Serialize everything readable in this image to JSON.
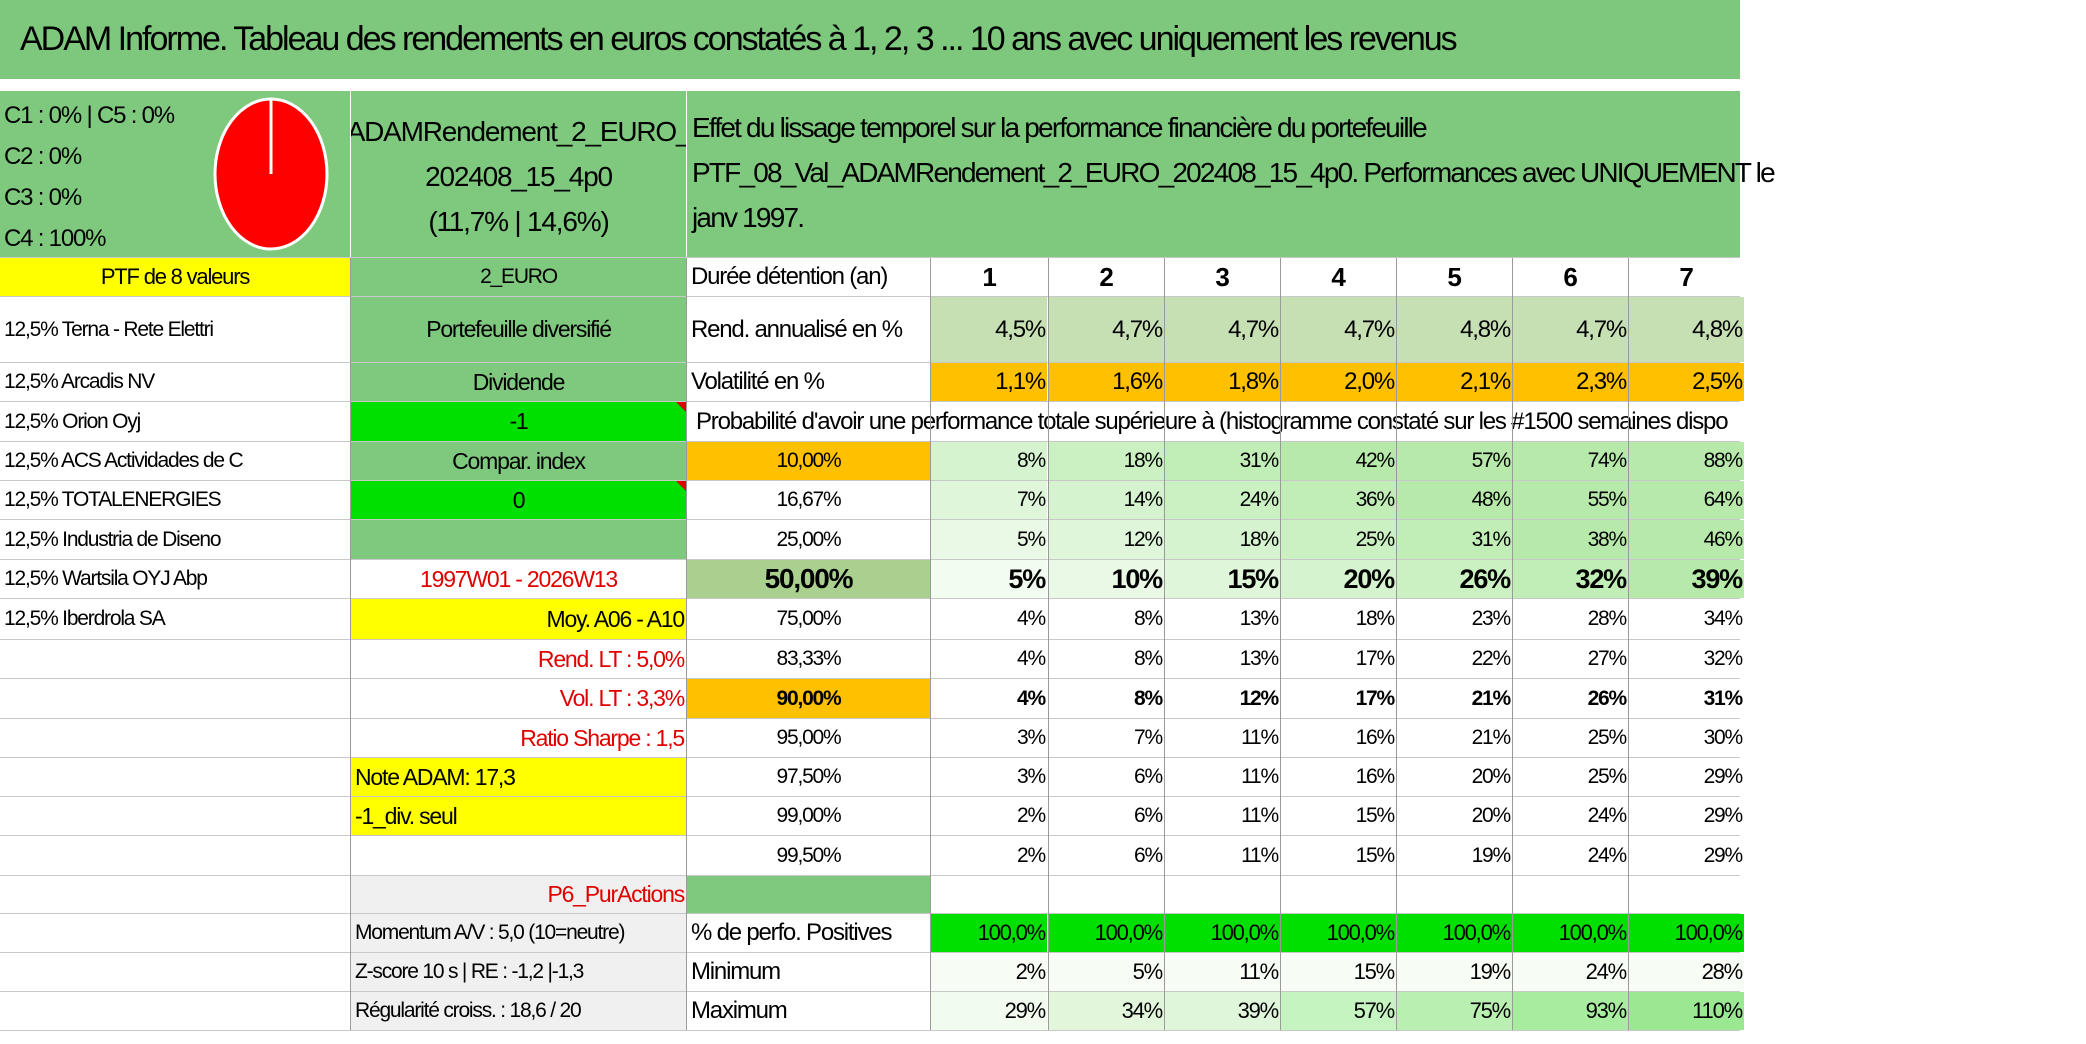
{
  "title": "ADAM Informe. Tableau des rendements en euros constatés à 1, 2, 3 ... 10 ans avec uniquement les revenus",
  "colors": {
    "green_header": "#7dc87d",
    "mid_green": "#7fc97f",
    "bright_green": "#00e000",
    "yellow": "#ffff00",
    "orange": "#ffc000",
    "pale_green": "#c6e0b4",
    "light_green": "#e2f6dc",
    "lightest_green": "#f1fcef",
    "red_text": "#e00000",
    "pie_red": "#ff0000"
  },
  "allocation": {
    "line1": "C1 : 0% | C5 : 0%",
    "line2": "C2 : 0%",
    "line3": "C3 : 0%",
    "line4": "C4 : 100%"
  },
  "fund": {
    "name_line1": "ADAMRendement_2_EURO_",
    "name_line2": "202408_15_4p0",
    "name_line3": "(11,7% | 14,6%)",
    "code": "2_EURO",
    "type": "Portefeuille diversifié",
    "income": "Dividende",
    "val1": "-1",
    "compar": "Compar. index",
    "val2": "0",
    "period": "1997W01 - 2026W13",
    "moy": "Moy. A06 - A10",
    "rend_lt": "Rend. LT : 5,0%",
    "vol_lt": "Vol. LT : 3,3%",
    "sharpe": "Ratio Sharpe : 1,5",
    "note": "Note ADAM: 17,3",
    "div_seul": "-1_div. seul",
    "pur_actions": "P6_PurActions",
    "momentum": "Momentum A/V : 5,0 (10=neutre)",
    "zscore": "Z-score 10 s | RE : -1,2 |-1,3",
    "regularite": "Régularité croiss. : 18,6 / 20"
  },
  "effect": {
    "line1": "Effet du lissage temporel sur la performance financière du portefeuille",
    "line2": "PTF_08_Val_ADAMRendement_2_EURO_202408_15_4p0. Performances avec UNIQUEMENT le",
    "line3": "janv 1997."
  },
  "ptf": {
    "header": "PTF de 8 valeurs",
    "holdings": [
      "12,5% Terna - Rete Elettri",
      "12,5% Arcadis NV",
      "12,5% Orion Oyj",
      "12,5% ACS Actividades de C",
      "12,5% TOTALENERGIES",
      "12,5% Industria de Diseno",
      "12,5% Wartsila OYJ Abp",
      "12,5% Iberdrola SA"
    ]
  },
  "table": {
    "duree_label": "Durée détention (an)",
    "years": [
      "1",
      "2",
      "3",
      "4",
      "5",
      "6",
      "7"
    ],
    "rend_label": "Rend. annualisé en %",
    "rend": [
      "4,5%",
      "4,7%",
      "4,7%",
      "4,7%",
      "4,8%",
      "4,7%",
      "4,8%"
    ],
    "vol_label": "Volatilité en %",
    "vol": [
      "1,1%",
      "1,6%",
      "1,8%",
      "2,0%",
      "2,1%",
      "2,3%",
      "2,5%"
    ],
    "proba_title": "Probabilité d'avoir une performance totale supérieure à (histogramme constaté sur les #1500 semaines dispo",
    "proba_rows": [
      {
        "label": "10,00%",
        "values": [
          "8%",
          "18%",
          "31%",
          "42%",
          "57%",
          "74%",
          "88%"
        ]
      },
      {
        "label": "16,67%",
        "values": [
          "7%",
          "14%",
          "24%",
          "36%",
          "48%",
          "55%",
          "64%"
        ]
      },
      {
        "label": "25,00%",
        "values": [
          "5%",
          "12%",
          "18%",
          "25%",
          "31%",
          "38%",
          "46%"
        ]
      },
      {
        "label": "50,00%",
        "values": [
          "5%",
          "10%",
          "15%",
          "20%",
          "26%",
          "32%",
          "39%"
        ]
      },
      {
        "label": "75,00%",
        "values": [
          "4%",
          "8%",
          "13%",
          "18%",
          "23%",
          "28%",
          "34%"
        ]
      },
      {
        "label": "83,33%",
        "values": [
          "4%",
          "8%",
          "13%",
          "17%",
          "22%",
          "27%",
          "32%"
        ]
      },
      {
        "label": "90,00%",
        "values": [
          "4%",
          "8%",
          "12%",
          "17%",
          "21%",
          "26%",
          "31%"
        ]
      },
      {
        "label": "95,00%",
        "values": [
          "3%",
          "7%",
          "11%",
          "16%",
          "21%",
          "25%",
          "30%"
        ]
      },
      {
        "label": "97,50%",
        "values": [
          "3%",
          "6%",
          "11%",
          "16%",
          "20%",
          "25%",
          "29%"
        ]
      },
      {
        "label": "99,00%",
        "values": [
          "2%",
          "6%",
          "11%",
          "15%",
          "20%",
          "24%",
          "29%"
        ]
      },
      {
        "label": "99,50%",
        "values": [
          "2%",
          "6%",
          "11%",
          "15%",
          "19%",
          "24%",
          "29%"
        ]
      }
    ],
    "pos_label": "% de perfo. Positives",
    "pos": [
      "100,0%",
      "100,0%",
      "100,0%",
      "100,0%",
      "100,0%",
      "100,0%",
      "100,0%"
    ],
    "min_label": "Minimum",
    "min": [
      "2%",
      "5%",
      "11%",
      "15%",
      "19%",
      "24%",
      "28%"
    ],
    "max_label": "Maximum",
    "max": [
      "29%",
      "34%",
      "39%",
      "57%",
      "75%",
      "93%",
      "110%"
    ]
  }
}
